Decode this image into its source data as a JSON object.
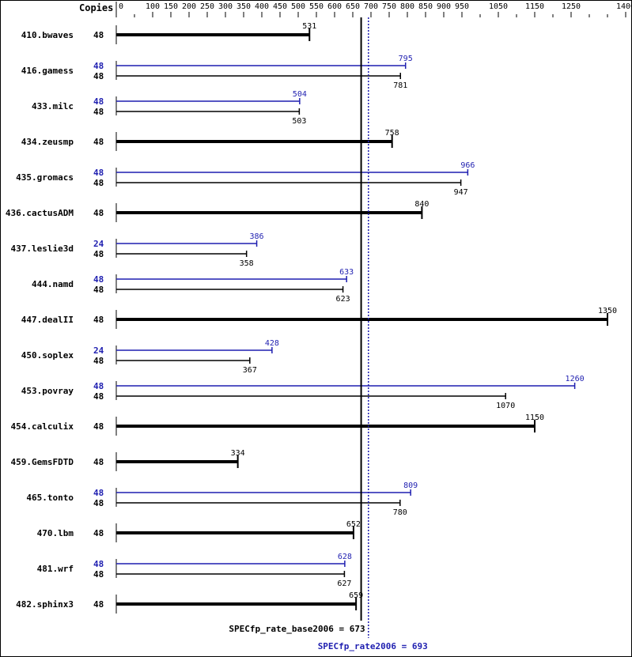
{
  "chart_data": {
    "type": "bar",
    "orientation": "horizontal",
    "copies_header": "Copies",
    "xlim": [
      0,
      1400
    ],
    "major_ticks": [
      0,
      100,
      150,
      200,
      250,
      300,
      350,
      400,
      450,
      500,
      550,
      600,
      650,
      700,
      750,
      800,
      850,
      900,
      950,
      1050,
      1150,
      1250,
      1400
    ],
    "minor_ticks": [
      50,
      1000,
      1100,
      1200,
      1300,
      1350
    ],
    "colors": {
      "base": "#000000",
      "peak": "#1f1fb0"
    },
    "benchmarks": [
      {
        "name": "410.bwaves",
        "base_copies": "48",
        "base": 531
      },
      {
        "name": "416.gamess",
        "peak_copies": "48",
        "peak": 795,
        "base_copies": "48",
        "base": 781
      },
      {
        "name": "433.milc",
        "peak_copies": "48",
        "peak": 504,
        "base_copies": "48",
        "base": 503
      },
      {
        "name": "434.zeusmp",
        "base_copies": "48",
        "base": 758
      },
      {
        "name": "435.gromacs",
        "peak_copies": "48",
        "peak": 966,
        "base_copies": "48",
        "base": 947
      },
      {
        "name": "436.cactusADM",
        "base_copies": "48",
        "base": 840
      },
      {
        "name": "437.leslie3d",
        "peak_copies": "24",
        "peak": 386,
        "base_copies": "48",
        "base": 358
      },
      {
        "name": "444.namd",
        "peak_copies": "48",
        "peak": 633,
        "base_copies": "48",
        "base": 623
      },
      {
        "name": "447.dealII",
        "base_copies": "48",
        "base": 1350
      },
      {
        "name": "450.soplex",
        "peak_copies": "24",
        "peak": 428,
        "base_copies": "48",
        "base": 367
      },
      {
        "name": "453.povray",
        "peak_copies": "48",
        "peak": 1260,
        "base_copies": "48",
        "base": 1070
      },
      {
        "name": "454.calculix",
        "base_copies": "48",
        "base": 1150
      },
      {
        "name": "459.GemsFDTD",
        "base_copies": "48",
        "base": 334
      },
      {
        "name": "465.tonto",
        "peak_copies": "48",
        "peak": 809,
        "base_copies": "48",
        "base": 780
      },
      {
        "name": "470.lbm",
        "base_copies": "48",
        "base": 652
      },
      {
        "name": "481.wrf",
        "peak_copies": "48",
        "peak": 628,
        "base_copies": "48",
        "base": 627
      },
      {
        "name": "482.sphinx3",
        "base_copies": "48",
        "base": 659
      }
    ],
    "base_mean": {
      "label": "SPECfp_rate_base2006 = 673",
      "value": 673
    },
    "peak_mean": {
      "label": "SPECfp_rate2006 = 693",
      "value": 693
    }
  }
}
